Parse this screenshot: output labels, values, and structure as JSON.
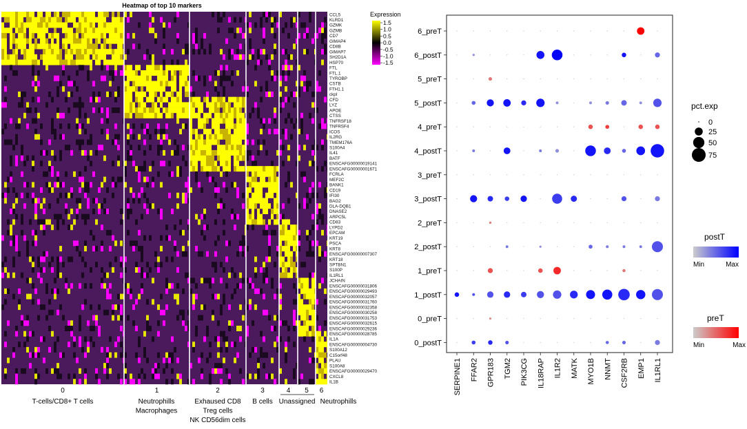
{
  "chart_data": [
    {
      "type": "heatmap",
      "title": "Heatmap of top 10 markers",
      "legend_title": "Expression",
      "scale_ticks": [
        1.5,
        1.0,
        0.5,
        0.0,
        -0.5,
        -1.0,
        -1.5
      ],
      "scale_colors": {
        "high": "#ffff00",
        "mid": "#000000",
        "low": "#ff00ff",
        "background": "#4b1a5c"
      },
      "genes": [
        "CCL5",
        "KLRD1",
        "GZMK",
        "GZMB",
        "CD7",
        "GIMAP4",
        "CD8B",
        "GIMAP7",
        "SH2D1A",
        "HSP70",
        "FTL",
        "FTL.1",
        "TYROBP",
        "CSTB",
        "FTH1.1",
        "ckpl",
        "CFD",
        "LYZ",
        "APOE",
        "CTSS",
        "TNFRSF18",
        "TNFRSF4",
        "ICOS",
        "IL2RG",
        "TMEM176A",
        "S100A4",
        "IL41",
        "BATF",
        "ENSCAFG00000019141",
        "ENSCAFG00000001671",
        "FCRLA",
        "MEF2C",
        "BANK1",
        "CD19",
        "IFI30",
        "BAG2",
        "DLA-DQB1",
        "DNASE2",
        "ARPC5L",
        "CD83",
        "LYPD2",
        "EPCAM",
        "KRT19",
        "PSCA",
        "KRT8",
        "ENSCAFG00000007307",
        "KRT18",
        "SPTBN1",
        "S100P",
        "IL1RL1",
        "JCHAIN",
        "ENSCAFG00000031806",
        "ENSCAFG00000029493",
        "ENSCAFG00000032057",
        "ENSCAFG00000031760",
        "ENSCAFG00000032358",
        "ENSCAFG00000030258",
        "ENSCAFG00000031753",
        "ENSCAFG00000032615",
        "ENSCAFG00000029236",
        "ENSCAFG00000028785",
        "IL1A",
        "ENSCAFG00000004730",
        "S100A12",
        "C15orf48",
        "PLAU",
        "S100A8",
        "ENSCAFG00000029470",
        "CXCL8",
        "IL1B"
      ],
      "clusters": [
        {
          "id": "0",
          "label": [
            "T-cells/CD8+ T cells"
          ]
        },
        {
          "id": "1",
          "label": [
            "Neutrophills",
            "Macrophages"
          ]
        },
        {
          "id": "2",
          "label": [
            "Exhaused CD8",
            "Treg cells",
            "NK CD56dim cells"
          ]
        },
        {
          "id": "3",
          "label": [
            "B cells"
          ]
        },
        {
          "id": "4",
          "label": [
            "Unassigned"
          ]
        },
        {
          "id": "5",
          "label": []
        },
        {
          "id": "6",
          "label": [
            "Neutrophills"
          ]
        }
      ]
    },
    {
      "type": "scatter",
      "subtype": "dotplot",
      "x_genes": [
        "SERPINE1",
        "FFAR2",
        "GPR183",
        "TGM2",
        "PIK3CG",
        "IL18RAP",
        "IL1R2",
        "MATK",
        "MYO1B",
        "NNMT",
        "CSF2RB",
        "EMP1",
        "IL1RL1"
      ],
      "y_groups": [
        "6_preT",
        "6_postT",
        "5_preT",
        "5_postT",
        "4_preT",
        "4_postT",
        "3_preT",
        "3_postT",
        "2_preT",
        "2_postT",
        "1_preT",
        "1_postT",
        "0_preT",
        "0_postT"
      ],
      "size_legend": {
        "title": "pct.exp",
        "values": [
          0,
          25,
          50,
          75
        ]
      },
      "color_legends": [
        {
          "title": "postT",
          "min_label": "Min",
          "max_label": "Max",
          "low": "#cccccc",
          "high": "#0000ff"
        },
        {
          "title": "preT",
          "min_label": "Min",
          "max_label": "Max",
          "low": "#cccccc",
          "high": "#ff0000"
        }
      ],
      "pct_exp": {
        "6_preT": [
          0,
          0,
          0,
          0,
          0,
          0,
          0,
          0,
          0,
          0,
          0,
          22,
          0
        ],
        "6_postT": [
          0,
          2,
          0,
          0,
          0,
          25,
          45,
          0,
          0,
          0,
          8,
          0,
          10
        ],
        "5_preT": [
          0,
          0,
          5,
          0,
          0,
          0,
          0,
          0,
          0,
          0,
          0,
          0,
          0
        ],
        "5_postT": [
          0,
          6,
          20,
          22,
          10,
          28,
          3,
          0,
          3,
          5,
          12,
          3,
          28
        ],
        "4_preT": [
          0,
          0,
          0,
          0,
          0,
          0,
          0,
          0,
          8,
          6,
          0,
          8,
          8
        ],
        "4_postT": [
          0,
          3,
          0,
          18,
          0,
          3,
          5,
          0,
          45,
          18,
          6,
          30,
          72
        ],
        "3_preT": [
          0,
          0,
          0,
          0,
          0,
          0,
          0,
          0,
          0,
          0,
          0,
          0,
          0
        ],
        "3_postT": [
          0,
          20,
          12,
          8,
          16,
          0,
          40,
          15,
          0,
          0,
          10,
          0,
          10
        ],
        "2_preT": [
          0,
          0,
          2,
          0,
          0,
          0,
          0,
          0,
          0,
          0,
          0,
          0,
          0
        ],
        "2_postT": [
          0,
          0,
          0,
          3,
          0,
          2,
          0,
          0,
          6,
          3,
          3,
          3,
          48
        ],
        "1_preT": [
          0,
          0,
          10,
          0,
          0,
          8,
          22,
          0,
          0,
          0,
          4,
          0,
          0
        ],
        "1_postT": [
          8,
          3,
          16,
          16,
          12,
          20,
          28,
          24,
          32,
          40,
          52,
          34,
          48
        ],
        "0_preT": [
          0,
          0,
          2,
          0,
          0,
          0,
          0,
          0,
          0,
          0,
          0,
          0,
          0
        ],
        "0_postT": [
          0,
          6,
          8,
          5,
          0,
          0,
          0,
          0,
          0,
          4,
          5,
          0,
          10
        ]
      },
      "avg_exp": {
        "6_preT": [
          0,
          0,
          0,
          0,
          0,
          0,
          0,
          0,
          0,
          0,
          0,
          1,
          0
        ],
        "6_postT": [
          0,
          0.3,
          0,
          0,
          0,
          0.9,
          1,
          0,
          0,
          0,
          0.9,
          0,
          0.5
        ],
        "5_preT": [
          0,
          0,
          0.4,
          0,
          0,
          0,
          0,
          0,
          0,
          0,
          0,
          0,
          0
        ],
        "5_postT": [
          0,
          0.5,
          0.9,
          0.9,
          0.8,
          0.9,
          0.3,
          0,
          0.3,
          0.4,
          0.5,
          0.3,
          0.6
        ],
        "4_preT": [
          0,
          0,
          0,
          0,
          0,
          0,
          0,
          0,
          0.6,
          0.7,
          0,
          0.6,
          0.6
        ],
        "4_postT": [
          0,
          0.4,
          0,
          0.9,
          0,
          0.4,
          0.3,
          0,
          0.9,
          0.8,
          0.5,
          0.9,
          0.9
        ],
        "3_preT": [
          0,
          0,
          0,
          0,
          0,
          0,
          0,
          0,
          0,
          0,
          0,
          0,
          0
        ],
        "3_postT": [
          0,
          0.9,
          0.8,
          0.7,
          0.9,
          0,
          0.7,
          0.8,
          0,
          0,
          0.6,
          0,
          0.4
        ],
        "2_preT": [
          0,
          0,
          0.4,
          0,
          0,
          0,
          0,
          0,
          0,
          0,
          0,
          0,
          0
        ],
        "2_postT": [
          0,
          0,
          0,
          0.4,
          0,
          0.3,
          0,
          0,
          0.5,
          0.4,
          0.4,
          0.4,
          0.6
        ],
        "1_preT": [
          0,
          0,
          0.6,
          0,
          0,
          0.6,
          0.8,
          0,
          0,
          0,
          0.4,
          0,
          0
        ],
        "1_postT": [
          0.9,
          0.6,
          0.6,
          0.8,
          0.7,
          0.6,
          0.6,
          0.8,
          0.9,
          0.9,
          0.8,
          0.9,
          0.6
        ],
        "0_preT": [
          0,
          0,
          0.3,
          0,
          0,
          0,
          0,
          0,
          0,
          0,
          0,
          0,
          0
        ],
        "0_postT": [
          0,
          0.7,
          0.8,
          0.6,
          0,
          0,
          0,
          0,
          0,
          0.5,
          0.5,
          0,
          0.4
        ]
      }
    }
  ]
}
